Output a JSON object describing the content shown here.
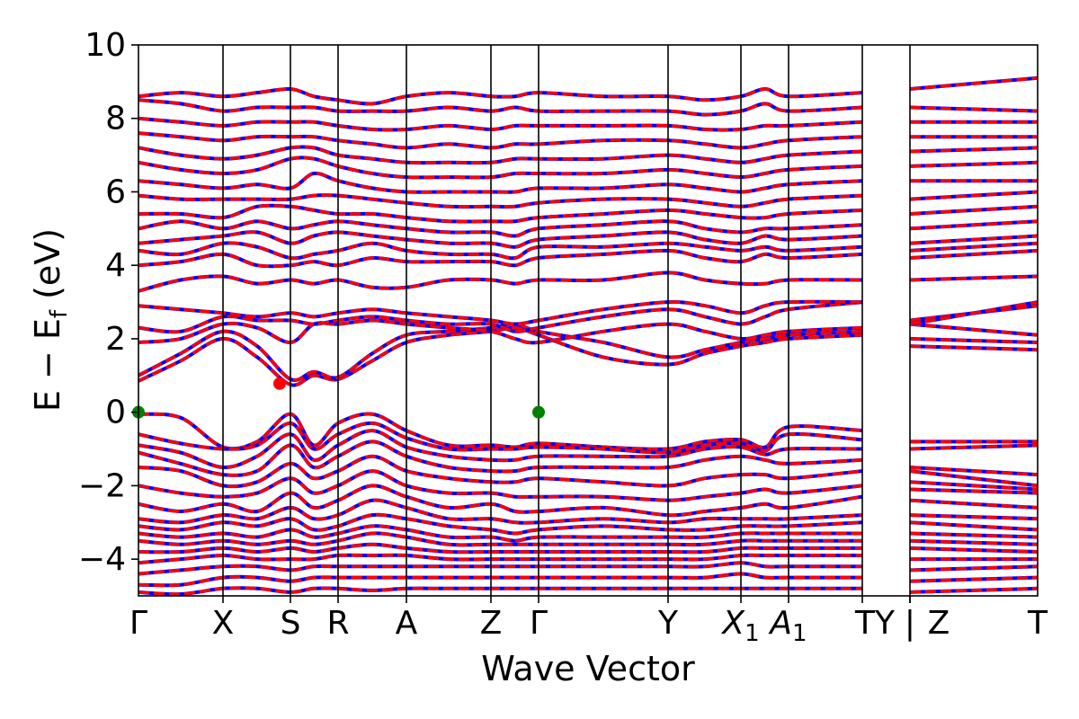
{
  "chart_data": {
    "type": "line",
    "title": "",
    "xlabel": "Wave Vector",
    "ylabel": "E − E_f (eV)",
    "ylabel_parts": {
      "main": "E − E",
      "sub": "f",
      "unit": " (eV)"
    },
    "ylim": [
      -5,
      10
    ],
    "yticks": [
      -4,
      -2,
      0,
      2,
      4,
      6,
      8,
      10
    ],
    "ytick_labels": [
      "−4",
      "−2",
      "0",
      "2",
      "4",
      "6",
      "8",
      "10"
    ],
    "xlim": [
      0,
      10
    ],
    "kpoints": [
      {
        "label": "Γ",
        "x": 0.0
      },
      {
        "label": "X",
        "x": 0.94
      },
      {
        "label": "S",
        "x": 1.69
      },
      {
        "label": "R",
        "x": 2.22
      },
      {
        "label": "A",
        "x": 2.98
      },
      {
        "label": "Z",
        "x": 3.92
      },
      {
        "label": "Γ",
        "x": 4.45
      },
      {
        "label": "Y",
        "x": 5.89
      },
      {
        "label": "X1",
        "x": 6.7,
        "sub": "1",
        "base": "X",
        "italic": true
      },
      {
        "label": "A1",
        "x": 7.23,
        "sub": "1",
        "base": "A",
        "italic": true
      },
      {
        "label": "T",
        "x": 8.05
      },
      {
        "label": "Y",
        "x": 8.58
      },
      {
        "label": "Z",
        "x": 8.58
      },
      {
        "label": "T",
        "x": 10.0
      }
    ],
    "kpoint_tick_label_text": [
      "Γ",
      "X",
      "S",
      "R",
      "A",
      "Z",
      "Γ",
      "Y",
      "X₁",
      "A₁",
      "TY",
      "|",
      "Z",
      "T"
    ],
    "segments": [
      {
        "from": "Γ",
        "to": "X",
        "x0": 0.0,
        "x1": 0.94
      },
      {
        "from": "X",
        "to": "S",
        "x0": 0.94,
        "x1": 1.69
      },
      {
        "from": "S",
        "to": "R",
        "x0": 1.69,
        "x1": 2.22
      },
      {
        "from": "R",
        "to": "A",
        "x0": 2.22,
        "x1": 2.98
      },
      {
        "from": "A",
        "to": "Z",
        "x0": 2.98,
        "x1": 3.92
      },
      {
        "from": "Z",
        "to": "Γ",
        "x0": 3.92,
        "x1": 4.45
      },
      {
        "from": "Γ",
        "to": "Y",
        "x0": 4.45,
        "x1": 5.89
      },
      {
        "from": "Y",
        "to": "X1",
        "x0": 5.89,
        "x1": 6.7
      },
      {
        "from": "X1",
        "to": "A1",
        "x0": 6.7,
        "x1": 7.23
      },
      {
        "from": "A1",
        "to": "T",
        "x0": 7.23,
        "x1": 8.05
      },
      {
        "from": "T",
        "to": "Y",
        "x0": 8.05,
        "x1": 8.58
      },
      {
        "from": "Z",
        "to": "T",
        "x0": 8.58,
        "x1": 10.0
      }
    ],
    "series": [
      {
        "style": "solid",
        "color": "#0000ff"
      },
      {
        "style": "dashed",
        "color": "#ff0000"
      }
    ],
    "colors": {
      "band_spin_up": "#0000ff",
      "band_spin_down": "#ff0000",
      "marker": "#008000",
      "axis": "#000000"
    },
    "markers": [
      {
        "x": 0.0,
        "y": 0.0,
        "color": "#008000",
        "kind": "valence band maximum"
      },
      {
        "x": 4.45,
        "y": 0.0,
        "color": "#008000",
        "kind": "valence band maximum"
      },
      {
        "x": 1.57,
        "y": 0.78,
        "color": "#ff0000",
        "kind": "conduction band minimum"
      }
    ],
    "bands": [
      {
        "segment_points": [
          [
            -0.05,
            -0.15,
            -0.95,
            -0.8,
            -0.05,
            -0.9,
            -0.3,
            -0.05,
            -0.5,
            -0.9,
            -0.9,
            -0.95,
            -0.85,
            -0.95,
            -1.0,
            -0.8,
            -0.75,
            -0.95,
            -0.4,
            -0.5,
            -0.8,
            -0.8
          ]
        ]
      },
      {
        "segment_points": [
          [
            -0.6,
            -0.85,
            -1.0,
            -0.9,
            -0.3,
            -1.0,
            -0.6,
            -0.3,
            -0.7,
            -1.0,
            -1.0,
            -1.0,
            -0.95,
            -1.0,
            -1.1,
            -0.9,
            -0.85,
            -1.05,
            -0.6,
            -0.75,
            -1.0,
            -0.9
          ]
        ]
      },
      {
        "segment_points": [
          [
            -0.9,
            -1.1,
            -1.5,
            -1.2,
            -0.6,
            -1.3,
            -0.9,
            -0.5,
            -0.95,
            -1.2,
            -1.3,
            -1.3,
            -1.2,
            -1.2,
            -1.2,
            -1.0,
            -0.95,
            -1.15,
            -1.0,
            -1.0,
            -1.5,
            -1.7
          ]
        ]
      },
      {
        "segment_points": [
          [
            -1.1,
            -1.4,
            -1.7,
            -1.6,
            -0.9,
            -1.5,
            -1.2,
            -0.8,
            -1.2,
            -1.5,
            -1.6,
            -1.6,
            -1.5,
            -1.5,
            -1.5,
            -1.3,
            -1.2,
            -1.3,
            -1.4,
            -1.3,
            -1.6,
            -2.0
          ]
        ]
      },
      {
        "segment_points": [
          [
            -1.5,
            -1.6,
            -2.0,
            -1.9,
            -1.4,
            -1.8,
            -1.6,
            -1.2,
            -1.6,
            -1.8,
            -1.9,
            -1.9,
            -1.8,
            -1.9,
            -2.0,
            -1.8,
            -1.7,
            -1.7,
            -1.8,
            -1.6,
            -1.9,
            -2.1
          ]
        ]
      },
      {
        "segment_points": [
          [
            -2.0,
            -2.2,
            -2.3,
            -2.2,
            -1.8,
            -2.2,
            -2.0,
            -1.6,
            -2.0,
            -2.2,
            -2.2,
            -2.3,
            -2.3,
            -2.3,
            -2.4,
            -2.3,
            -2.2,
            -2.1,
            -2.2,
            -2.0,
            -2.1,
            -2.2
          ]
        ]
      },
      {
        "segment_points": [
          [
            -2.5,
            -2.7,
            -2.5,
            -2.7,
            -2.2,
            -2.6,
            -2.4,
            -2.0,
            -2.3,
            -2.6,
            -2.5,
            -2.7,
            -2.7,
            -2.6,
            -2.8,
            -2.7,
            -2.6,
            -2.5,
            -2.6,
            -2.3,
            -2.4,
            -2.6
          ]
        ]
      },
      {
        "segment_points": [
          [
            -2.9,
            -3.0,
            -2.8,
            -2.9,
            -2.6,
            -2.9,
            -2.8,
            -2.4,
            -2.6,
            -2.9,
            -2.9,
            -3.0,
            -3.0,
            -2.9,
            -3.0,
            -2.9,
            -2.9,
            -2.9,
            -2.9,
            -2.8,
            -2.8,
            -2.9
          ]
        ]
      },
      {
        "segment_points": [
          [
            -3.1,
            -3.2,
            -3.0,
            -3.1,
            -2.9,
            -3.2,
            -3.1,
            -2.8,
            -2.9,
            -3.1,
            -3.2,
            -3.3,
            -3.2,
            -3.1,
            -3.2,
            -3.2,
            -3.1,
            -3.1,
            -3.1,
            -3.0,
            -3.0,
            -3.2
          ]
        ]
      },
      {
        "segment_points": [
          [
            -3.3,
            -3.4,
            -3.3,
            -3.4,
            -3.2,
            -3.4,
            -3.3,
            -3.1,
            -3.2,
            -3.4,
            -3.4,
            -3.5,
            -3.4,
            -3.4,
            -3.4,
            -3.4,
            -3.3,
            -3.3,
            -3.3,
            -3.3,
            -3.3,
            -3.4
          ]
        ]
      },
      {
        "segment_points": [
          [
            -3.5,
            -3.6,
            -3.5,
            -3.6,
            -3.5,
            -3.6,
            -3.5,
            -3.3,
            -3.4,
            -3.6,
            -3.6,
            -3.6,
            -3.6,
            -3.6,
            -3.6,
            -3.6,
            -3.5,
            -3.5,
            -3.5,
            -3.5,
            -3.5,
            -3.6
          ]
        ]
      },
      {
        "segment_points": [
          [
            -3.8,
            -3.8,
            -3.7,
            -3.8,
            -3.7,
            -3.8,
            -3.7,
            -3.6,
            -3.7,
            -3.8,
            -3.8,
            -3.8,
            -3.8,
            -3.8,
            -3.8,
            -3.8,
            -3.7,
            -3.7,
            -3.7,
            -3.7,
            -3.7,
            -3.8
          ]
        ]
      },
      {
        "segment_points": [
          [
            -4.1,
            -4.0,
            -3.9,
            -4.0,
            -4.0,
            -4.0,
            -3.9,
            -3.9,
            -3.9,
            -4.0,
            -4.0,
            -4.0,
            -4.0,
            -4.0,
            -4.0,
            -4.0,
            -3.9,
            -3.9,
            -3.9,
            -3.9,
            -4.0,
            -4.0
          ]
        ]
      },
      {
        "segment_points": [
          [
            -4.4,
            -4.3,
            -4.2,
            -4.2,
            -4.3,
            -4.2,
            -4.2,
            -4.2,
            -4.2,
            -4.2,
            -4.2,
            -4.2,
            -4.2,
            -4.2,
            -4.2,
            -4.2,
            -4.1,
            -4.2,
            -4.2,
            -4.2,
            -4.3,
            -4.2
          ]
        ]
      },
      {
        "segment_points": [
          [
            -4.7,
            -4.7,
            -4.5,
            -4.5,
            -4.6,
            -4.5,
            -4.5,
            -4.5,
            -4.5,
            -4.5,
            -4.5,
            -4.5,
            -4.5,
            -4.5,
            -4.5,
            -4.5,
            -4.4,
            -4.5,
            -4.5,
            -4.5,
            -4.6,
            -4.5
          ]
        ]
      },
      {
        "segment_points": [
          [
            -4.9,
            -4.95,
            -4.8,
            -4.8,
            -4.9,
            -4.8,
            -4.8,
            -4.85,
            -4.8,
            -4.8,
            -4.8,
            -4.8,
            -4.8,
            -4.8,
            -4.8,
            -4.8,
            -4.8,
            -4.8,
            -4.8,
            -4.8,
            -4.9,
            -4.8
          ]
        ]
      },
      {
        "segment_points": [
          [
            0.85,
            1.4,
            2.0,
            1.5,
            0.75,
            1.0,
            0.9,
            1.4,
            1.9,
            2.1,
            2.2,
            2.3,
            2.1,
            1.5,
            1.3,
            1.6,
            1.8,
            1.9,
            2.0,
            2.1,
            1.8,
            1.7
          ]
        ]
      },
      {
        "segment_points": [
          [
            1.0,
            1.6,
            2.2,
            1.8,
            0.9,
            1.1,
            0.95,
            1.6,
            2.1,
            2.2,
            2.3,
            2.4,
            2.2,
            1.9,
            1.5,
            1.7,
            1.9,
            2.0,
            2.1,
            2.2,
            2.0,
            1.9
          ]
        ]
      },
      {
        "segment_points": [
          [
            1.9,
            2.0,
            2.4,
            2.3,
            1.9,
            2.4,
            2.4,
            2.5,
            2.4,
            2.3,
            2.2,
            2.0,
            1.9,
            2.2,
            2.4,
            2.2,
            2.0,
            2.1,
            2.2,
            2.3,
            2.4,
            2.1
          ]
        ]
      },
      {
        "segment_points": [
          [
            2.3,
            2.2,
            2.6,
            2.5,
            2.5,
            2.4,
            2.5,
            2.6,
            2.5,
            2.4,
            2.4,
            2.2,
            2.3,
            2.6,
            2.8,
            2.6,
            2.4,
            2.6,
            2.8,
            3.0,
            2.5,
            2.9
          ]
        ]
      },
      {
        "segment_points": [
          [
            2.9,
            2.8,
            2.7,
            2.6,
            2.7,
            2.6,
            2.7,
            2.8,
            2.7,
            2.6,
            2.5,
            2.4,
            2.5,
            2.8,
            3.0,
            2.9,
            2.7,
            2.9,
            3.0,
            3.0,
            2.4,
            3.0
          ]
        ]
      },
      {
        "segment_points": [
          [
            3.3,
            3.6,
            3.7,
            3.5,
            3.6,
            3.5,
            3.6,
            3.4,
            3.4,
            3.6,
            3.6,
            3.5,
            3.6,
            3.6,
            3.8,
            3.6,
            3.5,
            3.5,
            3.6,
            3.6,
            3.6,
            3.7
          ]
        ]
      },
      {
        "segment_points": [
          [
            4.0,
            4.1,
            4.3,
            4.0,
            4.0,
            4.1,
            4.0,
            4.2,
            4.1,
            4.1,
            4.1,
            4.0,
            4.2,
            4.3,
            4.4,
            4.2,
            4.1,
            4.3,
            4.2,
            4.3,
            4.2,
            4.4
          ]
        ]
      },
      {
        "segment_points": [
          [
            4.4,
            4.3,
            4.6,
            4.5,
            4.2,
            4.3,
            4.4,
            4.6,
            4.4,
            4.3,
            4.3,
            4.2,
            4.5,
            4.5,
            4.6,
            4.5,
            4.4,
            4.5,
            4.4,
            4.5,
            4.4,
            4.6
          ]
        ]
      },
      {
        "segment_points": [
          [
            4.6,
            4.7,
            4.8,
            4.9,
            4.6,
            4.8,
            4.9,
            4.8,
            4.7,
            4.6,
            4.6,
            4.5,
            4.7,
            4.8,
            4.9,
            4.7,
            4.6,
            4.8,
            4.7,
            4.8,
            4.6,
            4.8
          ]
        ]
      },
      {
        "segment_points": [
          [
            5.0,
            5.2,
            5.0,
            5.2,
            5.0,
            5.1,
            5.2,
            5.1,
            5.0,
            4.9,
            4.9,
            4.8,
            5.0,
            5.1,
            5.2,
            5.0,
            4.9,
            5.0,
            5.0,
            5.1,
            5.0,
            5.2
          ]
        ]
      },
      {
        "segment_points": [
          [
            5.4,
            5.4,
            5.3,
            5.6,
            5.6,
            5.5,
            5.4,
            5.4,
            5.3,
            5.2,
            5.2,
            5.2,
            5.3,
            5.4,
            5.5,
            5.4,
            5.3,
            5.3,
            5.4,
            5.5,
            5.4,
            5.6
          ]
        ]
      },
      {
        "segment_points": [
          [
            5.9,
            5.8,
            5.8,
            5.8,
            5.8,
            5.9,
            5.9,
            5.8,
            5.7,
            5.6,
            5.6,
            5.6,
            5.7,
            5.8,
            5.8,
            5.7,
            5.6,
            5.7,
            5.8,
            5.9,
            5.8,
            6.0
          ]
        ]
      },
      {
        "segment_points": [
          [
            6.3,
            6.2,
            6.1,
            6.2,
            6.1,
            6.5,
            6.3,
            6.1,
            6.0,
            6.0,
            6.0,
            6.0,
            6.1,
            6.1,
            6.2,
            6.1,
            6.0,
            6.1,
            6.2,
            6.3,
            6.3,
            6.3
          ]
        ]
      },
      {
        "segment_points": [
          [
            6.8,
            6.6,
            6.5,
            6.6,
            6.9,
            6.9,
            6.7,
            6.5,
            6.4,
            6.4,
            6.4,
            6.5,
            6.5,
            6.5,
            6.6,
            6.5,
            6.4,
            6.5,
            6.6,
            6.7,
            6.7,
            6.8
          ]
        ]
      },
      {
        "segment_points": [
          [
            7.2,
            7.0,
            6.9,
            7.0,
            7.2,
            7.2,
            7.0,
            6.9,
            6.8,
            6.8,
            6.8,
            6.9,
            6.9,
            6.9,
            7.0,
            6.9,
            6.8,
            6.9,
            7.0,
            7.1,
            7.1,
            7.2
          ]
        ]
      },
      {
        "segment_points": [
          [
            7.6,
            7.5,
            7.4,
            7.5,
            7.5,
            7.5,
            7.4,
            7.3,
            7.2,
            7.3,
            7.2,
            7.3,
            7.3,
            7.4,
            7.4,
            7.3,
            7.2,
            7.3,
            7.4,
            7.5,
            7.5,
            7.5
          ]
        ]
      },
      {
        "segment_points": [
          [
            8.0,
            7.9,
            7.8,
            7.9,
            7.9,
            7.9,
            7.8,
            7.7,
            7.7,
            7.8,
            7.7,
            7.8,
            7.8,
            7.8,
            7.8,
            7.7,
            7.7,
            7.8,
            7.8,
            7.9,
            7.9,
            7.9
          ]
        ]
      },
      {
        "segment_points": [
          [
            8.5,
            8.4,
            8.2,
            8.3,
            8.3,
            8.3,
            8.2,
            8.2,
            8.2,
            8.3,
            8.2,
            8.3,
            8.2,
            8.2,
            8.2,
            8.1,
            8.2,
            8.4,
            8.2,
            8.3,
            8.3,
            8.2
          ]
        ]
      },
      {
        "segment_points": [
          [
            8.6,
            8.7,
            8.6,
            8.7,
            8.8,
            8.6,
            8.5,
            8.4,
            8.6,
            8.7,
            8.6,
            8.6,
            8.7,
            8.6,
            8.6,
            8.5,
            8.6,
            8.8,
            8.6,
            8.7,
            8.8,
            9.1
          ]
        ]
      }
    ]
  }
}
